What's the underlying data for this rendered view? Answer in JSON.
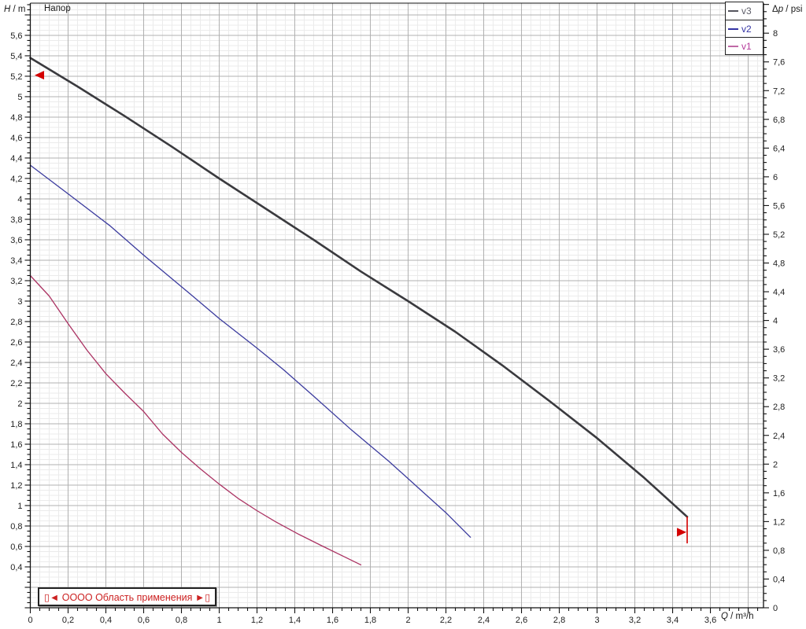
{
  "title": "Напор",
  "axis_labels": {
    "left_var": "H",
    "left_unit": "m",
    "right_var_prefix": "Δ",
    "right_var": "p",
    "right_unit": "psi",
    "bottom_var": "Q",
    "bottom_unit": "m³/h",
    "separator": " / "
  },
  "legend": {
    "items": [
      {
        "label": "v3",
        "line_color": "#55555e",
        "text_color": "#5d5d68"
      },
      {
        "label": "v2",
        "line_color": "#3434a4",
        "text_color": "#3434a4"
      },
      {
        "label": "v1",
        "line_color": "#c06aa6",
        "text_color": "#b43a9a"
      }
    ]
  },
  "range_box": {
    "label": "▯◄  ОООО Область применения  ►▯",
    "color": "#cc2222"
  },
  "chart_data": {
    "type": "line",
    "title": "Напор",
    "xlabel": "Q / m³/h",
    "ylabel_left": "H / m",
    "ylabel_right": "Δp / psi",
    "grid": {
      "major_color": "#b0b0b0",
      "minor_color": "#ebebeb"
    },
    "axis_color": "#111111",
    "tick_label_color": "#222222",
    "x_axis": {
      "min": 0,
      "max": 3.881,
      "major_step": 0.2,
      "minor_step": 0.05,
      "tick_values": [
        0,
        0.2,
        0.4,
        0.6,
        0.8,
        1,
        1.2,
        1.4,
        1.6,
        1.8,
        2,
        2.2,
        2.4,
        2.6,
        2.8,
        3,
        3.2,
        3.4,
        3.6
      ],
      "tick_labels": [
        "0",
        "0,2",
        "0,4",
        "0,6",
        "0,8",
        "1",
        "1,2",
        "1,4",
        "1,6",
        "1,8",
        "2",
        "2,2",
        "2,4",
        "2,6",
        "2,8",
        "3",
        "3,2",
        "3,4",
        "3,6"
      ]
    },
    "y_left": {
      "min": 0,
      "max": 5.915,
      "major_step": 0.2,
      "minor_step": 0.05,
      "tick_values": [
        0.4,
        0.6,
        0.8,
        1,
        1.2,
        1.4,
        1.6,
        1.8,
        2,
        2.2,
        2.4,
        2.6,
        2.8,
        3,
        3.2,
        3.4,
        3.6,
        3.8,
        4,
        4.2,
        4.4,
        4.6,
        4.8,
        5,
        5.2,
        5.4,
        5.6
      ],
      "tick_labels": [
        "0,4",
        "0,6",
        "0,8",
        "1",
        "1,2",
        "1,4",
        "1,6",
        "1,8",
        "2",
        "2,2",
        "2,4",
        "2,6",
        "2,8",
        "3",
        "3,2",
        "3,4",
        "3,6",
        "3,8",
        "4",
        "4,2",
        "4,4",
        "4,6",
        "4,8",
        "5",
        "5,2",
        "5,4",
        "5,6"
      ]
    },
    "y_right": {
      "min": 0,
      "max": 8.418,
      "major_step": 0.4,
      "minor_step": 0.1,
      "tick_values": [
        0,
        0.4,
        0.8,
        1.2,
        1.6,
        2,
        2.4,
        2.8,
        3.2,
        3.6,
        4,
        4.4,
        4.8,
        5.2,
        5.6,
        6,
        6.4,
        6.8,
        7.2,
        7.6,
        8
      ],
      "tick_labels": [
        "0",
        "0,4",
        "0,8",
        "1,2",
        "1,6",
        "2",
        "2,4",
        "2,8",
        "3,2",
        "3,6",
        "4",
        "4,4",
        "4,8",
        "5,2",
        "5,6",
        "6",
        "6,4",
        "6,8",
        "7,2",
        "7,6",
        "8"
      ]
    },
    "series": [
      {
        "name": "v3",
        "color": "#3a3a3e",
        "width": 2.6,
        "points": [
          [
            0,
            5.38
          ],
          [
            0.25,
            5.1
          ],
          [
            0.5,
            4.81
          ],
          [
            0.75,
            4.51
          ],
          [
            1.0,
            4.2
          ],
          [
            1.25,
            3.9
          ],
          [
            1.5,
            3.6
          ],
          [
            1.75,
            3.29
          ],
          [
            2.0,
            3.0
          ],
          [
            2.25,
            2.7
          ],
          [
            2.5,
            2.37
          ],
          [
            2.75,
            2.02
          ],
          [
            3.0,
            1.66
          ],
          [
            3.25,
            1.27
          ],
          [
            3.477,
            0.89
          ]
        ]
      },
      {
        "name": "v2",
        "color": "#3b3b9e",
        "width": 1.3,
        "points": [
          [
            0,
            4.33
          ],
          [
            0.2,
            4.05
          ],
          [
            0.42,
            3.74
          ],
          [
            0.6,
            3.45
          ],
          [
            0.84,
            3.08
          ],
          [
            1.0,
            2.83
          ],
          [
            1.2,
            2.54
          ],
          [
            1.34,
            2.33
          ],
          [
            1.5,
            2.07
          ],
          [
            1.7,
            1.74
          ],
          [
            1.9,
            1.43
          ],
          [
            2.05,
            1.18
          ],
          [
            2.2,
            0.93
          ],
          [
            2.33,
            0.69
          ]
        ]
      },
      {
        "name": "v1",
        "color": "#ab3363",
        "width": 1.3,
        "points": [
          [
            0,
            3.25
          ],
          [
            0.1,
            3.05
          ],
          [
            0.2,
            2.78
          ],
          [
            0.3,
            2.52
          ],
          [
            0.4,
            2.29
          ],
          [
            0.5,
            2.1
          ],
          [
            0.6,
            1.92
          ],
          [
            0.7,
            1.7
          ],
          [
            0.8,
            1.52
          ],
          [
            0.9,
            1.36
          ],
          [
            1.0,
            1.21
          ],
          [
            1.1,
            1.07
          ],
          [
            1.2,
            0.95
          ],
          [
            1.3,
            0.84
          ],
          [
            1.42,
            0.72
          ],
          [
            1.55,
            0.6
          ],
          [
            1.65,
            0.51
          ],
          [
            1.75,
            0.42
          ]
        ]
      }
    ],
    "markers": {
      "color": "#d40000",
      "start_arrow": {
        "q": 0.023,
        "h": 5.21,
        "dir": "left"
      },
      "end_arrow": {
        "q": 3.473,
        "h": 0.739,
        "dir": "right"
      },
      "end_drop_line": {
        "q": 3.477,
        "h_from": 0.892,
        "h_to": 0.63
      }
    }
  }
}
